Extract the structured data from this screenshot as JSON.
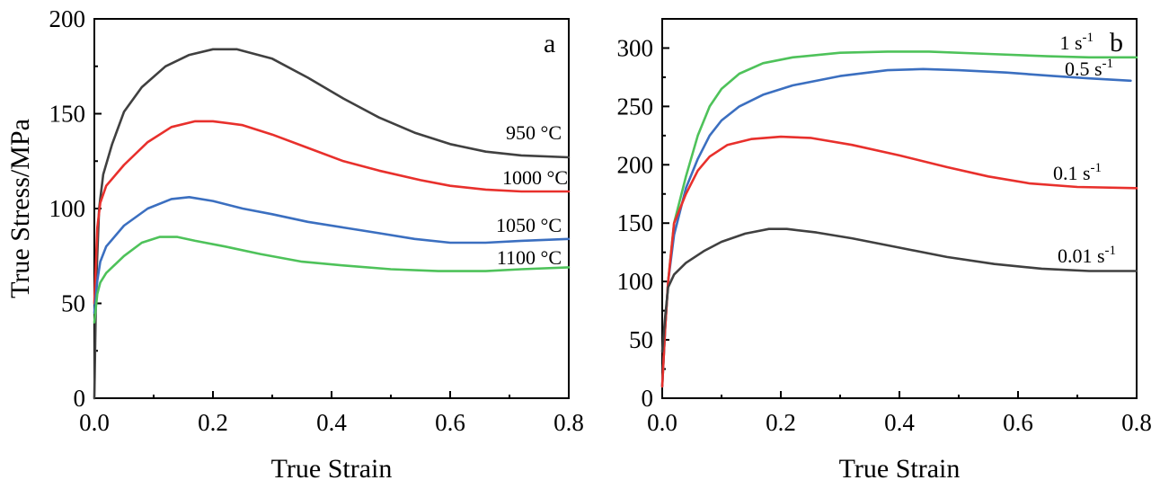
{
  "chart_data": [
    {
      "type": "line",
      "panel_label": "a",
      "xlabel": "True Strain",
      "ylabel": "True Stress/MPa",
      "xlim": [
        0.0,
        0.8
      ],
      "ylim": [
        0,
        200
      ],
      "xticks": [
        "0.0",
        "0.2",
        "0.4",
        "0.6",
        "0.8"
      ],
      "yticks": [
        "0",
        "50",
        "100",
        "150",
        "200"
      ],
      "series": [
        {
          "name": "950 °C",
          "color": "#404040",
          "points": [
            [
              0,
              0
            ],
            [
              0.003,
              60
            ],
            [
              0.008,
              100
            ],
            [
              0.015,
              118
            ],
            [
              0.03,
              134
            ],
            [
              0.05,
              151
            ],
            [
              0.08,
              164
            ],
            [
              0.12,
              175
            ],
            [
              0.16,
              181
            ],
            [
              0.2,
              184
            ],
            [
              0.24,
              184
            ],
            [
              0.3,
              179
            ],
            [
              0.36,
              169
            ],
            [
              0.42,
              158
            ],
            [
              0.48,
              148
            ],
            [
              0.54,
              140
            ],
            [
              0.6,
              134
            ],
            [
              0.66,
              130
            ],
            [
              0.72,
              128
            ],
            [
              0.8,
              127
            ]
          ]
        },
        {
          "name": "1000 °C",
          "color": "#e8302c",
          "points": [
            [
              0,
              50
            ],
            [
              0.005,
              90
            ],
            [
              0.01,
              103
            ],
            [
              0.02,
              112
            ],
            [
              0.05,
              123
            ],
            [
              0.09,
              135
            ],
            [
              0.13,
              143
            ],
            [
              0.17,
              146
            ],
            [
              0.2,
              146
            ],
            [
              0.25,
              144
            ],
            [
              0.3,
              139
            ],
            [
              0.36,
              132
            ],
            [
              0.42,
              125
            ],
            [
              0.48,
              120
            ],
            [
              0.55,
              115
            ],
            [
              0.6,
              112
            ],
            [
              0.66,
              110
            ],
            [
              0.72,
              109
            ],
            [
              0.8,
              109
            ]
          ]
        },
        {
          "name": "1050 °C",
          "color": "#3b6fc0",
          "points": [
            [
              0,
              45
            ],
            [
              0.005,
              62
            ],
            [
              0.01,
              72
            ],
            [
              0.02,
              80
            ],
            [
              0.05,
              91
            ],
            [
              0.09,
              100
            ],
            [
              0.13,
              105
            ],
            [
              0.16,
              106
            ],
            [
              0.2,
              104
            ],
            [
              0.25,
              100
            ],
            [
              0.3,
              97
            ],
            [
              0.36,
              93
            ],
            [
              0.42,
              90
            ],
            [
              0.48,
              87
            ],
            [
              0.54,
              84
            ],
            [
              0.6,
              82
            ],
            [
              0.66,
              82
            ],
            [
              0.72,
              83
            ],
            [
              0.8,
              84
            ]
          ]
        },
        {
          "name": "1100 °C",
          "color": "#4ec25a",
          "points": [
            [
              0,
              40
            ],
            [
              0.005,
              55
            ],
            [
              0.01,
              61
            ],
            [
              0.02,
              66
            ],
            [
              0.05,
              75
            ],
            [
              0.08,
              82
            ],
            [
              0.11,
              85
            ],
            [
              0.14,
              85
            ],
            [
              0.17,
              83
            ],
            [
              0.22,
              80
            ],
            [
              0.28,
              76
            ],
            [
              0.35,
              72
            ],
            [
              0.42,
              70
            ],
            [
              0.5,
              68
            ],
            [
              0.58,
              67
            ],
            [
              0.66,
              67
            ],
            [
              0.72,
              68
            ],
            [
              0.8,
              69
            ]
          ]
        }
      ]
    },
    {
      "type": "line",
      "panel_label": "b",
      "xlabel": "True Strain",
      "ylabel": "",
      "xlim": [
        0.0,
        0.8
      ],
      "ylim": [
        0,
        325
      ],
      "xticks": [
        "0.0",
        "0.2",
        "0.4",
        "0.6",
        "0.8"
      ],
      "yticks": [
        "0",
        "50",
        "100",
        "150",
        "200",
        "250",
        "300"
      ],
      "series": [
        {
          "name": "1 s",
          "unit_superscript": "-1",
          "color": "#4ec25a",
          "points": [
            [
              0,
              10
            ],
            [
              0.005,
              60
            ],
            [
              0.01,
              100
            ],
            [
              0.02,
              150
            ],
            [
              0.04,
              190
            ],
            [
              0.06,
              225
            ],
            [
              0.08,
              250
            ],
            [
              0.1,
              265
            ],
            [
              0.13,
              278
            ],
            [
              0.17,
              287
            ],
            [
              0.22,
              292
            ],
            [
              0.3,
              296
            ],
            [
              0.38,
              297
            ],
            [
              0.45,
              297
            ],
            [
              0.55,
              295
            ],
            [
              0.65,
              293
            ],
            [
              0.72,
              292
            ],
            [
              0.8,
              292
            ]
          ]
        },
        {
          "name": "0.5 s",
          "unit_superscript": "-1",
          "color": "#3b6fc0",
          "points": [
            [
              0,
              10
            ],
            [
              0.005,
              60
            ],
            [
              0.01,
              100
            ],
            [
              0.02,
              140
            ],
            [
              0.04,
              180
            ],
            [
              0.06,
              205
            ],
            [
              0.08,
              225
            ],
            [
              0.1,
              238
            ],
            [
              0.13,
              250
            ],
            [
              0.17,
              260
            ],
            [
              0.22,
              268
            ],
            [
              0.3,
              276
            ],
            [
              0.38,
              281
            ],
            [
              0.44,
              282
            ],
            [
              0.5,
              281
            ],
            [
              0.58,
              279
            ],
            [
              0.66,
              276
            ],
            [
              0.72,
              274
            ],
            [
              0.79,
              272
            ]
          ]
        },
        {
          "name": "0.1 s",
          "unit_superscript": "-1",
          "color": "#e8302c",
          "points": [
            [
              0,
              10
            ],
            [
              0.005,
              60
            ],
            [
              0.01,
              100
            ],
            [
              0.02,
              150
            ],
            [
              0.04,
              175
            ],
            [
              0.06,
              195
            ],
            [
              0.08,
              207
            ],
            [
              0.11,
              217
            ],
            [
              0.15,
              222
            ],
            [
              0.2,
              224
            ],
            [
              0.25,
              223
            ],
            [
              0.32,
              217
            ],
            [
              0.4,
              208
            ],
            [
              0.48,
              198
            ],
            [
              0.55,
              190
            ],
            [
              0.62,
              184
            ],
            [
              0.7,
              181
            ],
            [
              0.8,
              180
            ]
          ]
        },
        {
          "name": "0.01 s",
          "unit_superscript": "-1",
          "color": "#404040",
          "points": [
            [
              0,
              40
            ],
            [
              0.005,
              70
            ],
            [
              0.01,
              95
            ],
            [
              0.02,
              106
            ],
            [
              0.04,
              116
            ],
            [
              0.07,
              126
            ],
            [
              0.1,
              134
            ],
            [
              0.14,
              141
            ],
            [
              0.18,
              145
            ],
            [
              0.21,
              145
            ],
            [
              0.26,
              142
            ],
            [
              0.32,
              137
            ],
            [
              0.4,
              129
            ],
            [
              0.48,
              121
            ],
            [
              0.56,
              115
            ],
            [
              0.64,
              111
            ],
            [
              0.72,
              109
            ],
            [
              0.8,
              109
            ]
          ]
        }
      ]
    }
  ]
}
